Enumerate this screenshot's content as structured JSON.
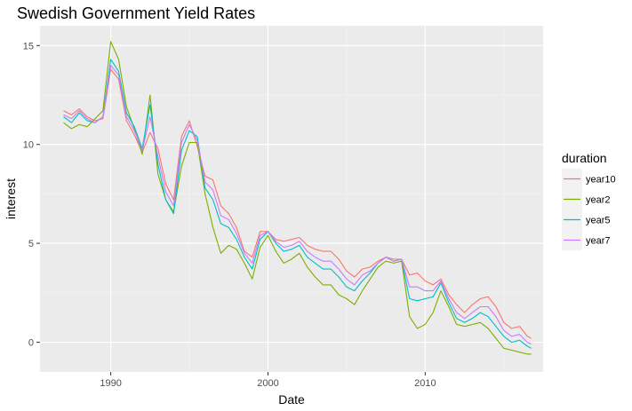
{
  "chart_data": {
    "type": "line",
    "title": "Swedish Government Yield Rates",
    "xlabel": "Date",
    "ylabel": "interest",
    "xlim": [
      1985.5,
      2017.5
    ],
    "ylim": [
      -1.5,
      16.0
    ],
    "x_ticks": [
      {
        "value": 1990,
        "label": "1990"
      },
      {
        "value": 2000,
        "label": "2000"
      },
      {
        "value": 2010,
        "label": "2010"
      }
    ],
    "y_ticks": [
      {
        "value": 0,
        "label": "0"
      },
      {
        "value": 5,
        "label": "5"
      },
      {
        "value": 10,
        "label": "10"
      },
      {
        "value": 15,
        "label": "15"
      }
    ],
    "grid": true,
    "legend": {
      "title": "duration",
      "placement": "right"
    },
    "x": [
      1987.0,
      1987.5,
      1988.0,
      1988.5,
      1989.0,
      1989.5,
      1990.0,
      1990.5,
      1991.0,
      1991.5,
      1992.0,
      1992.5,
      1993.0,
      1993.5,
      1994.0,
      1994.5,
      1995.0,
      1995.5,
      1996.0,
      1996.5,
      1997.0,
      1997.5,
      1998.0,
      1998.5,
      1999.0,
      1999.5,
      2000.0,
      2000.5,
      2001.0,
      2001.5,
      2002.0,
      2002.5,
      2003.0,
      2003.5,
      2004.0,
      2004.5,
      2005.0,
      2005.5,
      2006.0,
      2006.5,
      2007.0,
      2007.5,
      2008.0,
      2008.5,
      2009.0,
      2009.5,
      2010.0,
      2010.5,
      2011.0,
      2011.5,
      2012.0,
      2012.5,
      2013.0,
      2013.5,
      2014.0,
      2014.5,
      2015.0,
      2015.5,
      2016.0,
      2016.5,
      2016.75
    ],
    "series": [
      {
        "name": "year10",
        "color": "#F8766D",
        "values": [
          11.7,
          11.5,
          11.8,
          11.4,
          11.2,
          11.3,
          13.8,
          13.3,
          11.2,
          10.5,
          9.6,
          10.6,
          9.8,
          8.0,
          7.2,
          10.4,
          11.2,
          9.9,
          8.4,
          8.2,
          6.9,
          6.5,
          5.8,
          4.6,
          4.3,
          5.6,
          5.6,
          5.2,
          5.1,
          5.2,
          5.3,
          4.9,
          4.7,
          4.6,
          4.6,
          4.2,
          3.6,
          3.3,
          3.7,
          3.8,
          4.1,
          4.3,
          4.2,
          4.2,
          3.4,
          3.5,
          3.1,
          2.9,
          3.2,
          2.4,
          1.9,
          1.5,
          1.9,
          2.2,
          2.3,
          1.8,
          1.0,
          0.7,
          0.8,
          0.3,
          0.2
        ]
      },
      {
        "name": "year2",
        "color": "#7CAE00",
        "values": [
          11.1,
          10.8,
          11.0,
          10.9,
          11.3,
          11.7,
          15.2,
          14.3,
          11.9,
          10.8,
          9.5,
          12.5,
          8.5,
          7.2,
          6.6,
          8.9,
          10.1,
          10.1,
          7.5,
          5.8,
          4.5,
          4.9,
          4.7,
          4.0,
          3.2,
          4.8,
          5.4,
          4.6,
          4.0,
          4.2,
          4.5,
          3.8,
          3.3,
          2.9,
          2.9,
          2.4,
          2.2,
          1.9,
          2.6,
          3.2,
          3.8,
          4.1,
          4.0,
          4.1,
          1.3,
          0.7,
          0.9,
          1.5,
          2.6,
          1.8,
          0.9,
          0.8,
          0.9,
          1.0,
          0.7,
          0.2,
          -0.3,
          -0.4,
          -0.5,
          -0.6,
          -0.6
        ]
      },
      {
        "name": "year5",
        "color": "#00BFC4",
        "values": [
          11.4,
          11.1,
          11.6,
          11.2,
          11.1,
          11.4,
          14.3,
          13.7,
          11.6,
          10.9,
          9.8,
          12.0,
          9.0,
          7.2,
          6.5,
          9.7,
          10.7,
          10.4,
          7.8,
          7.2,
          6.0,
          5.8,
          5.2,
          4.3,
          3.7,
          5.2,
          5.6,
          5.0,
          4.6,
          4.7,
          4.9,
          4.3,
          4.0,
          3.7,
          3.7,
          3.3,
          2.8,
          2.6,
          3.1,
          3.5,
          4.0,
          4.3,
          4.1,
          4.2,
          2.2,
          2.1,
          2.2,
          2.3,
          3.0,
          2.0,
          1.2,
          1.0,
          1.2,
          1.5,
          1.3,
          0.8,
          0.3,
          0.0,
          0.1,
          -0.2,
          -0.3
        ]
      },
      {
        "name": "year7",
        "color": "#C77CFF",
        "values": [
          11.5,
          11.3,
          11.7,
          11.3,
          11.1,
          11.4,
          14.0,
          13.5,
          11.4,
          10.7,
          9.7,
          11.4,
          9.4,
          7.6,
          6.9,
          10.1,
          11.0,
          10.2,
          8.1,
          7.7,
          6.4,
          6.2,
          5.5,
          4.5,
          4.0,
          5.4,
          5.6,
          5.1,
          4.8,
          4.9,
          5.1,
          4.6,
          4.3,
          4.1,
          4.1,
          3.7,
          3.2,
          2.9,
          3.4,
          3.6,
          4.0,
          4.3,
          4.1,
          4.2,
          2.8,
          2.8,
          2.6,
          2.6,
          3.1,
          2.2,
          1.5,
          1.2,
          1.5,
          1.8,
          1.8,
          1.3,
          0.6,
          0.3,
          0.4,
          0.0,
          -0.1
        ]
      }
    ]
  }
}
